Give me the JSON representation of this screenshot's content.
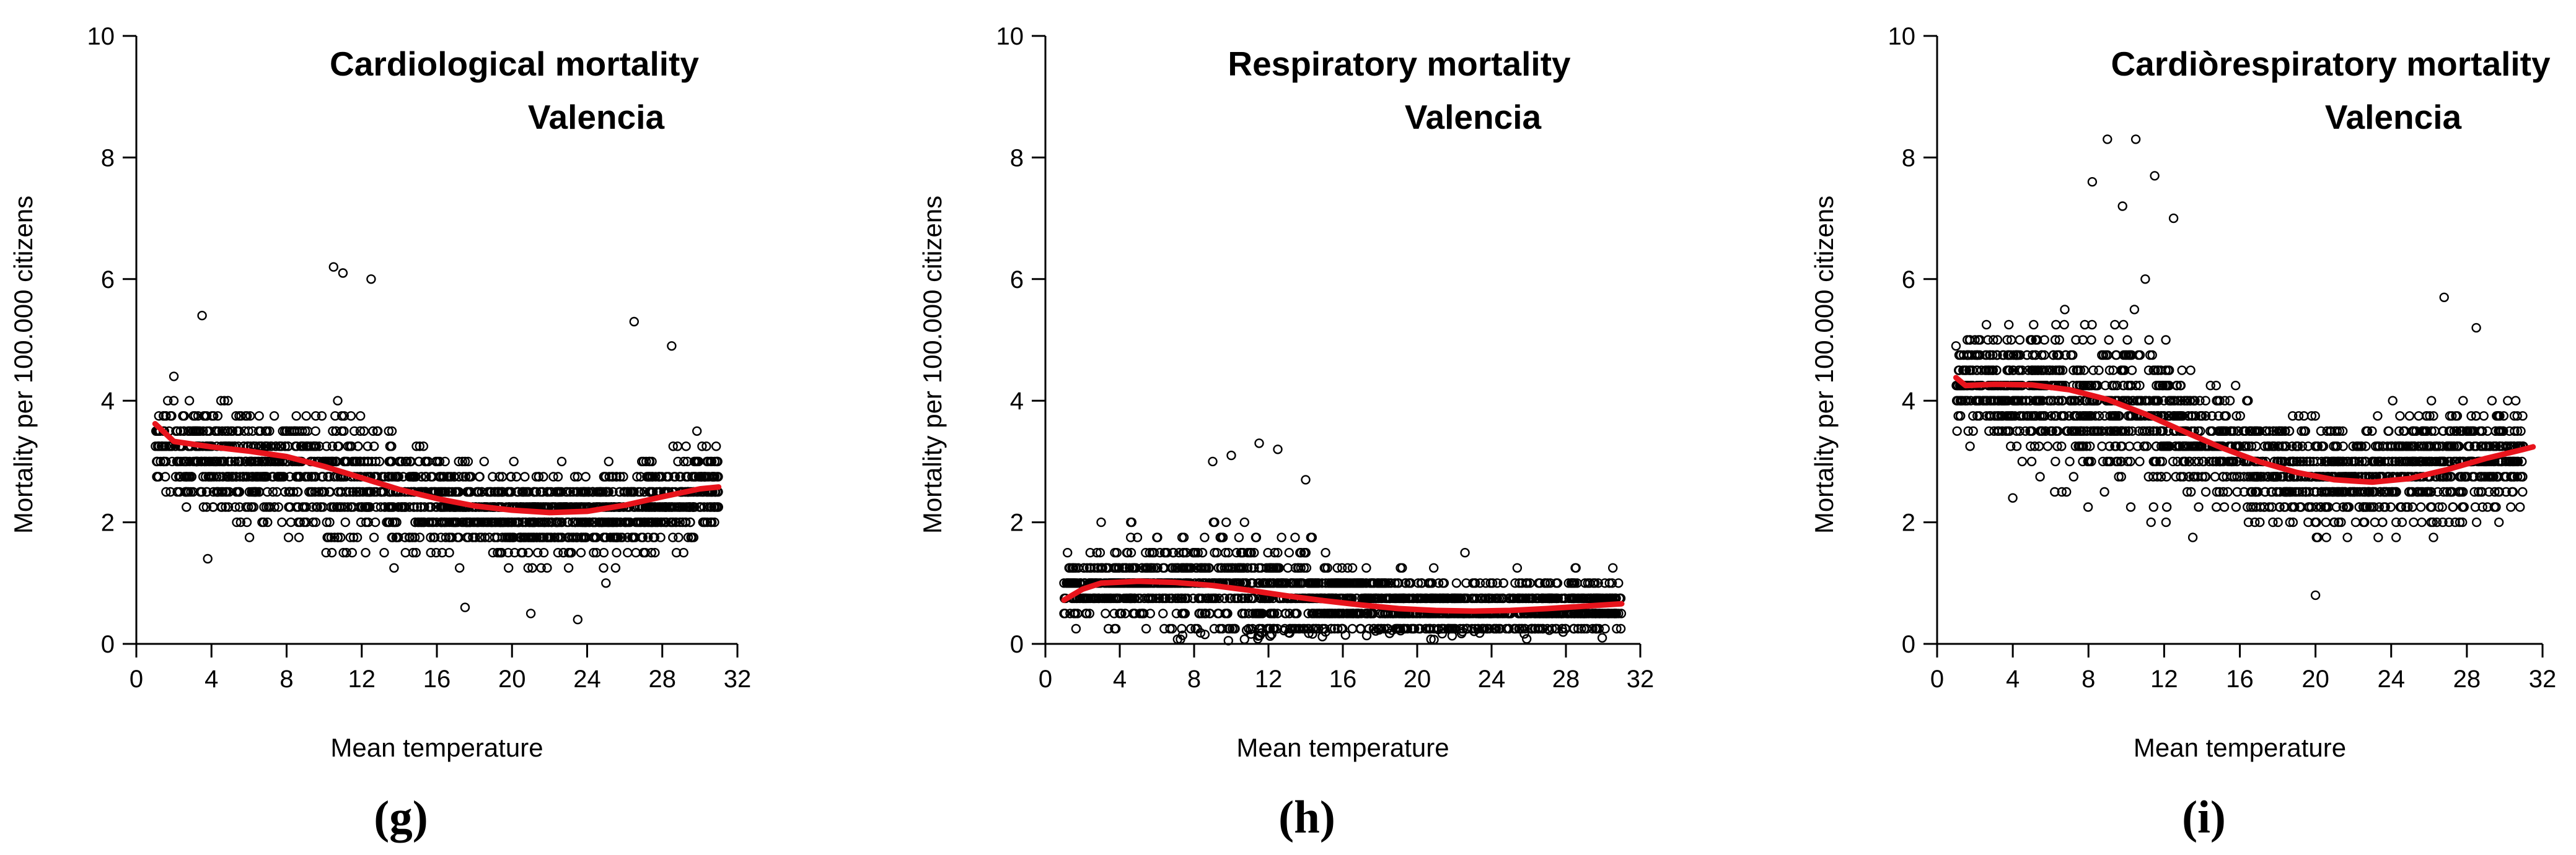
{
  "chart_data": [
    {
      "type": "scatter",
      "panel_label": "(g)",
      "title": [
        "Cardiological mortality",
        "Valencia"
      ],
      "xlabel": "Mean temperature",
      "ylabel": "Mortality per 100.000 citizens",
      "xlim": [
        0,
        32
      ],
      "ylim": [
        0,
        10
      ],
      "xticks": [
        0,
        4,
        8,
        12,
        16,
        20,
        24,
        28,
        32
      ],
      "yticks": [
        0,
        2,
        4,
        6,
        8,
        10
      ],
      "point_color": "#000000",
      "trend_color": "#e8141c",
      "scatter_center": [
        [
          1,
          3.3
        ],
        [
          4,
          3.0
        ],
        [
          8,
          2.9
        ],
        [
          12,
          2.6
        ],
        [
          16,
          2.3
        ],
        [
          20,
          2.1
        ],
        [
          24,
          2.1
        ],
        [
          28,
          2.3
        ],
        [
          31,
          2.6
        ]
      ],
      "scatter_spread": [
        [
          1,
          0.6
        ],
        [
          4,
          0.8
        ],
        [
          8,
          0.8
        ],
        [
          11,
          1.0
        ],
        [
          16,
          0.7
        ],
        [
          20,
          0.6
        ],
        [
          24,
          0.6
        ],
        [
          28,
          0.7
        ],
        [
          31,
          0.6
        ]
      ],
      "scatter_count": 1800,
      "highlight_points": [
        [
          10.5,
          6.2
        ],
        [
          11,
          6.1
        ],
        [
          12.5,
          6.0
        ],
        [
          3.5,
          5.4
        ],
        [
          26.5,
          5.3
        ],
        [
          28.5,
          4.9
        ],
        [
          2,
          4.4
        ],
        [
          17.5,
          0.6
        ],
        [
          23.5,
          0.4
        ],
        [
          21,
          0.5
        ],
        [
          3.8,
          1.4
        ]
      ],
      "trend": [
        [
          1,
          3.62
        ],
        [
          2,
          3.33
        ],
        [
          4,
          3.24
        ],
        [
          6,
          3.17
        ],
        [
          8,
          3.08
        ],
        [
          10,
          2.92
        ],
        [
          12,
          2.73
        ],
        [
          14,
          2.54
        ],
        [
          16,
          2.39
        ],
        [
          18,
          2.27
        ],
        [
          20,
          2.2
        ],
        [
          22,
          2.16
        ],
        [
          24,
          2.18
        ],
        [
          26,
          2.28
        ],
        [
          28,
          2.42
        ],
        [
          30,
          2.55
        ],
        [
          31,
          2.58
        ]
      ]
    },
    {
      "type": "scatter",
      "panel_label": "(h)",
      "title": [
        "Respiratory mortality",
        "Valencia"
      ],
      "xlabel": "Mean temperature",
      "ylabel": "Mortality per 100.000 citizens",
      "xlim": [
        0,
        32
      ],
      "ylim": [
        0,
        10
      ],
      "xticks": [
        0,
        4,
        8,
        12,
        16,
        20,
        24,
        28,
        32
      ],
      "yticks": [
        0,
        2,
        4,
        6,
        8,
        10
      ],
      "point_color": "#000000",
      "trend_color": "#e8141c",
      "scatter_center": [
        [
          1,
          0.9
        ],
        [
          4,
          1.0
        ],
        [
          8,
          1.0
        ],
        [
          12,
          0.85
        ],
        [
          16,
          0.7
        ],
        [
          20,
          0.6
        ],
        [
          24,
          0.55
        ],
        [
          28,
          0.6
        ],
        [
          30,
          0.65
        ]
      ],
      "scatter_spread": [
        [
          1,
          0.4
        ],
        [
          4,
          0.5
        ],
        [
          8,
          0.7
        ],
        [
          11,
          0.8
        ],
        [
          16,
          0.5
        ],
        [
          20,
          0.45
        ],
        [
          24,
          0.4
        ],
        [
          28,
          0.4
        ],
        [
          30,
          0.35
        ]
      ],
      "scatter_count": 1800,
      "highlight_points": [
        [
          11.5,
          3.3
        ],
        [
          10,
          3.1
        ],
        [
          12.5,
          3.2
        ],
        [
          9,
          3.0
        ],
        [
          14,
          2.7
        ],
        [
          3,
          2.0
        ],
        [
          30,
          0.75
        ],
        [
          1,
          0.5
        ]
      ],
      "trend": [
        [
          1,
          0.72
        ],
        [
          2,
          0.9
        ],
        [
          3,
          1.0
        ],
        [
          5,
          1.03
        ],
        [
          7,
          1.01
        ],
        [
          9,
          0.96
        ],
        [
          11,
          0.88
        ],
        [
          13,
          0.79
        ],
        [
          15,
          0.71
        ],
        [
          17,
          0.64
        ],
        [
          19,
          0.58
        ],
        [
          21,
          0.55
        ],
        [
          23,
          0.54
        ],
        [
          25,
          0.55
        ],
        [
          27,
          0.58
        ],
        [
          29,
          0.62
        ],
        [
          31,
          0.66
        ]
      ]
    },
    {
      "type": "scatter",
      "panel_label": "(i)",
      "title": [
        "Cardiòrespiratory mortality",
        "Valencia"
      ],
      "xlabel": "Mean temperature",
      "ylabel": "Mortality per 100.000 citizens",
      "xlim": [
        0,
        32
      ],
      "ylim": [
        0,
        10
      ],
      "xticks": [
        0,
        4,
        8,
        12,
        16,
        20,
        24,
        28,
        32
      ],
      "yticks": [
        0,
        2,
        4,
        6,
        8,
        10
      ],
      "point_color": "#000000",
      "trend_color": "#e8141c",
      "scatter_center": [
        [
          1,
          4.3
        ],
        [
          4,
          4.2
        ],
        [
          8,
          4.0
        ],
        [
          11,
          3.8
        ],
        [
          14,
          3.3
        ],
        [
          18,
          2.9
        ],
        [
          22,
          2.7
        ],
        [
          26,
          2.9
        ],
        [
          30,
          3.1
        ]
      ],
      "scatter_spread": [
        [
          1,
          0.6
        ],
        [
          4,
          0.9
        ],
        [
          8,
          1.1
        ],
        [
          11,
          1.2
        ],
        [
          14,
          0.9
        ],
        [
          18,
          0.8
        ],
        [
          22,
          0.7
        ],
        [
          26,
          0.8
        ],
        [
          30,
          0.7
        ]
      ],
      "scatter_count": 1900,
      "highlight_points": [
        [
          9,
          8.3
        ],
        [
          10.5,
          8.3
        ],
        [
          11.5,
          7.7
        ],
        [
          8.2,
          7.6
        ],
        [
          12.5,
          7.0
        ],
        [
          9.8,
          7.2
        ],
        [
          26.8,
          5.7
        ],
        [
          28.5,
          5.2
        ],
        [
          1,
          4.9
        ],
        [
          2,
          5.0
        ],
        [
          20,
          0.8
        ],
        [
          4,
          2.4
        ]
      ],
      "trend": [
        [
          1,
          4.38
        ],
        [
          1.5,
          4.25
        ],
        [
          3,
          4.27
        ],
        [
          5,
          4.26
        ],
        [
          7,
          4.18
        ],
        [
          9,
          4.02
        ],
        [
          11,
          3.78
        ],
        [
          13,
          3.5
        ],
        [
          15,
          3.23
        ],
        [
          17,
          3.0
        ],
        [
          19,
          2.82
        ],
        [
          21,
          2.7
        ],
        [
          23,
          2.66
        ],
        [
          25,
          2.72
        ],
        [
          27,
          2.87
        ],
        [
          29,
          3.05
        ],
        [
          31,
          3.2
        ],
        [
          31.5,
          3.24
        ]
      ]
    }
  ]
}
